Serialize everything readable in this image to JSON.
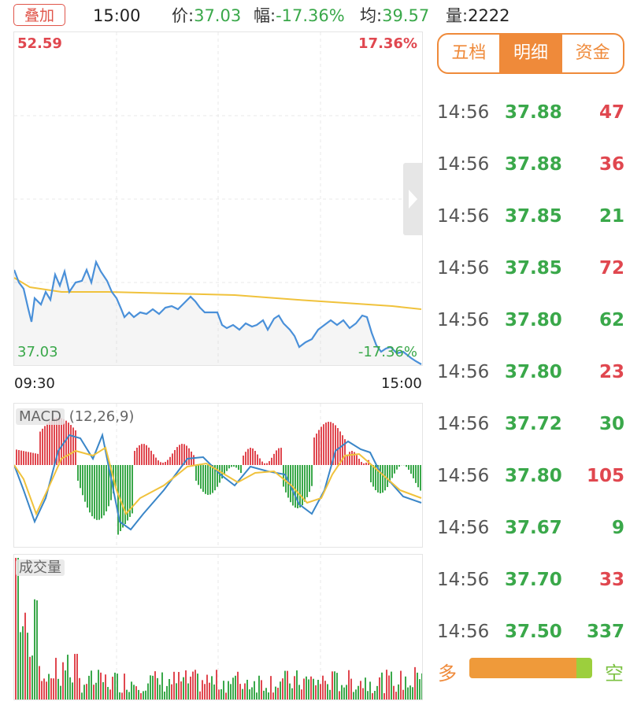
{
  "header": {
    "overlay_button": "叠加",
    "time": "15:00",
    "price_label": "价:",
    "price_value": "37.03",
    "change_label": "幅:",
    "change_value": "-17.36%",
    "avg_label": "均:",
    "avg_value": "39.57",
    "volume_label": "量:",
    "volume_value": "2222"
  },
  "intraday_chart": {
    "max_price": "52.59",
    "max_pct": "17.36%",
    "min_price": "37.03",
    "min_pct": "-17.36%",
    "start_time": "09:30",
    "end_time": "15:00",
    "colors": {
      "price": "#4a90d9",
      "avg": "#f0c23c",
      "up": "#e0474f",
      "down": "#3aa84a"
    }
  },
  "macd_panel": {
    "label": "MACD",
    "params": "(12,26,9)"
  },
  "volume_panel": {
    "label": "成交量"
  },
  "tabs": [
    {
      "label": "五档",
      "active": false
    },
    {
      "label": "明细",
      "active": true
    },
    {
      "label": "资金",
      "active": false
    }
  ],
  "trades": [
    {
      "time": "14:56",
      "price": "37.88",
      "volume": "47",
      "dir": "up"
    },
    {
      "time": "14:56",
      "price": "37.88",
      "volume": "36",
      "dir": "up"
    },
    {
      "time": "14:56",
      "price": "37.85",
      "volume": "21",
      "dir": "down"
    },
    {
      "time": "14:56",
      "price": "37.85",
      "volume": "72",
      "dir": "up"
    },
    {
      "time": "14:56",
      "price": "37.80",
      "volume": "62",
      "dir": "down"
    },
    {
      "time": "14:56",
      "price": "37.80",
      "volume": "23",
      "dir": "up"
    },
    {
      "time": "14:56",
      "price": "37.72",
      "volume": "30",
      "dir": "down"
    },
    {
      "time": "14:56",
      "price": "37.80",
      "volume": "105",
      "dir": "up"
    },
    {
      "time": "14:56",
      "price": "37.67",
      "volume": "9",
      "dir": "down"
    },
    {
      "time": "14:56",
      "price": "37.70",
      "volume": "33",
      "dir": "up"
    },
    {
      "time": "14:56",
      "price": "37.50",
      "volume": "337",
      "dir": "down"
    }
  ],
  "buy_sell": {
    "buy_label": "多",
    "sell_label": "空",
    "buy_fraction": 0.87
  }
}
